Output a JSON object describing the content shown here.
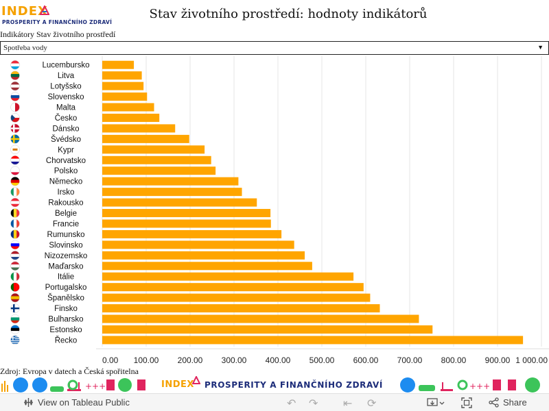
{
  "header": {
    "logo_big": "INDEX",
    "logo_small": "PROSPERITY A FINANČNÍHO ZDRAVÍ",
    "title": "Stav životního prostředí: hodnoty indikátorů"
  },
  "filter": {
    "label": "Indikátory Stav životního prostředí",
    "selected": "Spotřeba vody"
  },
  "footer": {
    "source": "Zdroj: Evropa v datech a Česká spořitelna",
    "banner_index": "INDEX",
    "banner_text": "PROSPERITY A FINANČNÍHO ZDRAVÍ"
  },
  "toolbar": {
    "view_label": "View on Tableau Public",
    "share_label": "Share"
  },
  "colors": {
    "bar": "#ffa500",
    "brand_orange": "#f5a100",
    "brand_blue": "#1d2d7a"
  },
  "chart_data": {
    "type": "bar",
    "orientation": "horizontal",
    "categories": [
      "Lucembursko",
      "Litva",
      "Lotyšsko",
      "Slovensko",
      "Malta",
      "Česko",
      "Dánsko",
      "Švédsko",
      "Kypr",
      "Chorvatsko",
      "Polsko",
      "Německo",
      "Irsko",
      "Rakousko",
      "Belgie",
      "Francie",
      "Rumunsko",
      "Slovinsko",
      "Nizozemsko",
      "Maďarsko",
      "Itálie",
      "Portugalsko",
      "Španělsko",
      "Finsko",
      "Bulharsko",
      "Estonsko",
      "Řecko"
    ],
    "values": [
      72,
      90,
      94,
      102,
      118,
      130,
      166,
      198,
      233,
      248,
      258,
      310,
      318,
      352,
      383,
      384,
      408,
      437,
      461,
      478,
      572,
      595,
      610,
      632,
      721,
      752,
      958
    ],
    "xticks": [
      "0,00",
      "100,00",
      "200,00",
      "300,00",
      "400,00",
      "500,00",
      "600,00",
      "700,00",
      "800,00",
      "900,00",
      "1 000,00"
    ],
    "xlim": [
      0,
      1000
    ],
    "grid": true,
    "flags": [
      "lu",
      "lt",
      "lv",
      "sk",
      "mt",
      "cz",
      "dk",
      "se",
      "cy",
      "hr",
      "pl",
      "de",
      "ie",
      "at",
      "be",
      "fr",
      "ro",
      "si",
      "nl",
      "hu",
      "it",
      "pt",
      "es",
      "fi",
      "bg",
      "ee",
      "gr"
    ]
  }
}
